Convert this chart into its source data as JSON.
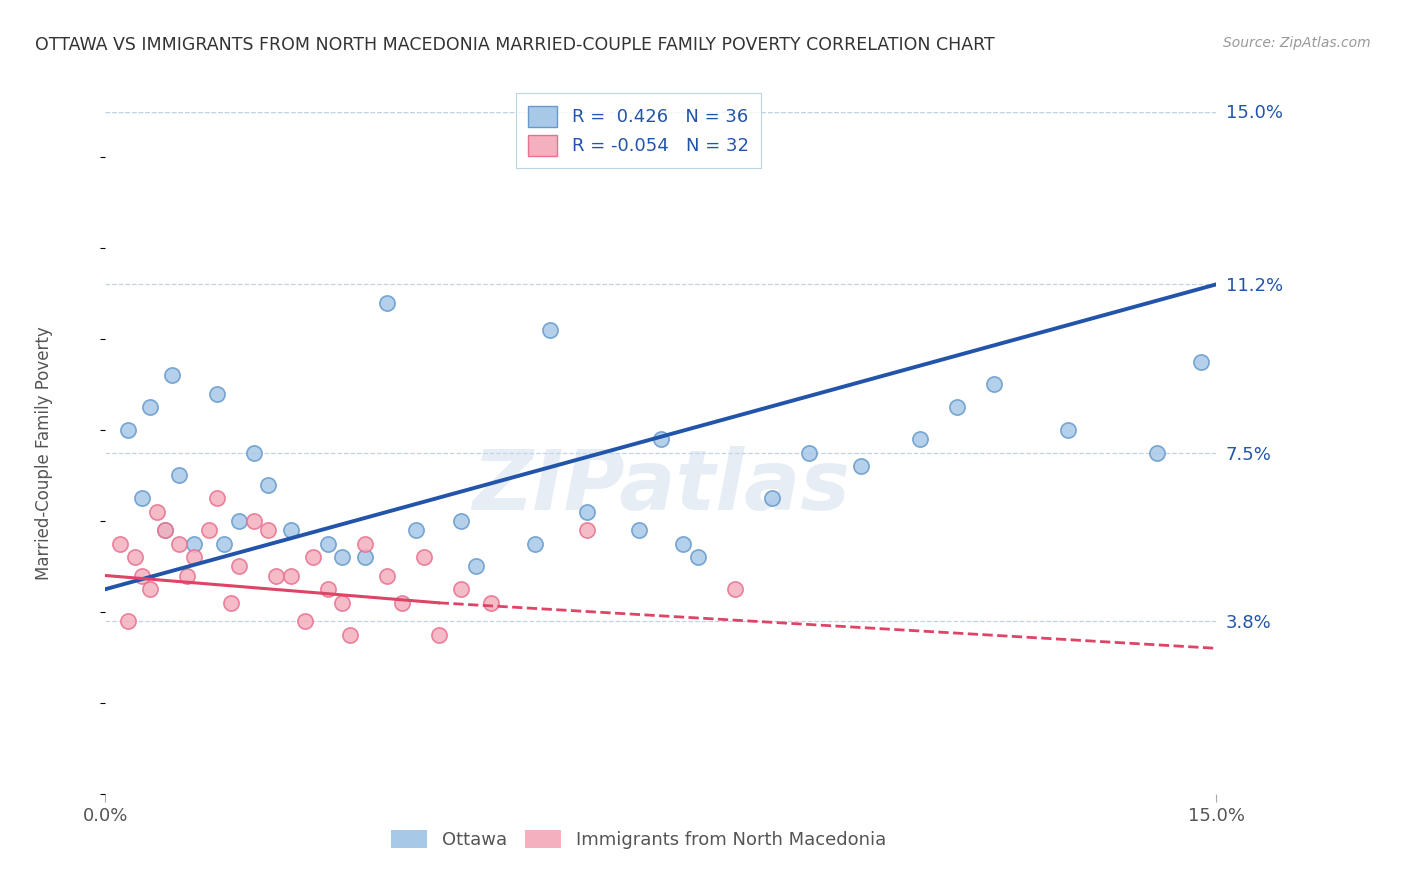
{
  "title": "OTTAWA VS IMMIGRANTS FROM NORTH MACEDONIA MARRIED-COUPLE FAMILY POVERTY CORRELATION CHART",
  "source": "Source: ZipAtlas.com",
  "ylabel": "Married-Couple Family Poverty",
  "xmin": 0.0,
  "xmax": 15.0,
  "ymin": 0.0,
  "ymax": 15.0,
  "ytick_labels": [
    "3.8%",
    "7.5%",
    "11.2%",
    "15.0%"
  ],
  "ytick_vals": [
    3.8,
    7.5,
    11.2,
    15.0
  ],
  "blue_R": 0.426,
  "blue_N": 36,
  "pink_R": -0.054,
  "pink_N": 32,
  "blue_fill": "#a8c8e8",
  "pink_fill": "#f4b0bc",
  "blue_edge": "#6699cc",
  "pink_edge": "#e87090",
  "blue_line_color": "#2255aa",
  "pink_line_color": "#dd4466",
  "legend_blue": "Ottawa",
  "legend_pink": "Immigrants from North Macedonia",
  "blue_scatter_x": [
    0.3,
    0.6,
    0.9,
    1.5,
    2.0,
    0.5,
    1.0,
    1.8,
    2.5,
    3.0,
    3.5,
    4.2,
    5.0,
    5.8,
    6.5,
    7.2,
    8.0,
    9.0,
    10.2,
    11.0,
    13.0,
    14.2,
    6.0,
    3.8,
    2.2,
    1.2,
    4.8,
    7.8,
    9.5,
    12.0,
    14.8,
    0.8,
    1.6,
    3.2,
    7.5,
    11.5
  ],
  "blue_scatter_y": [
    8.0,
    8.5,
    9.2,
    8.8,
    7.5,
    6.5,
    7.0,
    6.0,
    5.8,
    5.5,
    5.2,
    5.8,
    5.0,
    5.5,
    6.2,
    5.8,
    5.2,
    6.5,
    7.2,
    7.8,
    8.0,
    7.5,
    10.2,
    10.8,
    6.8,
    5.5,
    6.0,
    5.5,
    7.5,
    9.0,
    9.5,
    5.8,
    5.5,
    5.2,
    7.8,
    8.5
  ],
  "pink_scatter_x": [
    0.2,
    0.4,
    0.5,
    0.7,
    0.8,
    1.0,
    1.2,
    1.4,
    1.5,
    1.8,
    2.0,
    2.2,
    2.5,
    2.8,
    3.0,
    3.2,
    3.5,
    3.8,
    4.0,
    4.3,
    4.8,
    5.2,
    0.3,
    0.6,
    1.1,
    1.7,
    2.3,
    2.7,
    3.3,
    4.5,
    6.5,
    8.5
  ],
  "pink_scatter_y": [
    5.5,
    5.2,
    4.8,
    6.2,
    5.8,
    5.5,
    5.2,
    5.8,
    6.5,
    5.0,
    6.0,
    5.8,
    4.8,
    5.2,
    4.5,
    4.2,
    5.5,
    4.8,
    4.2,
    5.2,
    4.5,
    4.2,
    3.8,
    4.5,
    4.8,
    4.2,
    4.8,
    3.8,
    3.5,
    3.5,
    5.8,
    4.5
  ],
  "blue_trend_x0": 0.0,
  "blue_trend_y0": 4.5,
  "blue_trend_x1": 15.0,
  "blue_trend_y1": 11.2,
  "pink_solid_x0": 0.0,
  "pink_solid_y0": 4.8,
  "pink_solid_x1": 4.5,
  "pink_solid_y1": 4.2,
  "pink_dash_x0": 4.5,
  "pink_dash_y0": 4.2,
  "pink_dash_x1": 15.0,
  "pink_dash_y1": 3.2
}
